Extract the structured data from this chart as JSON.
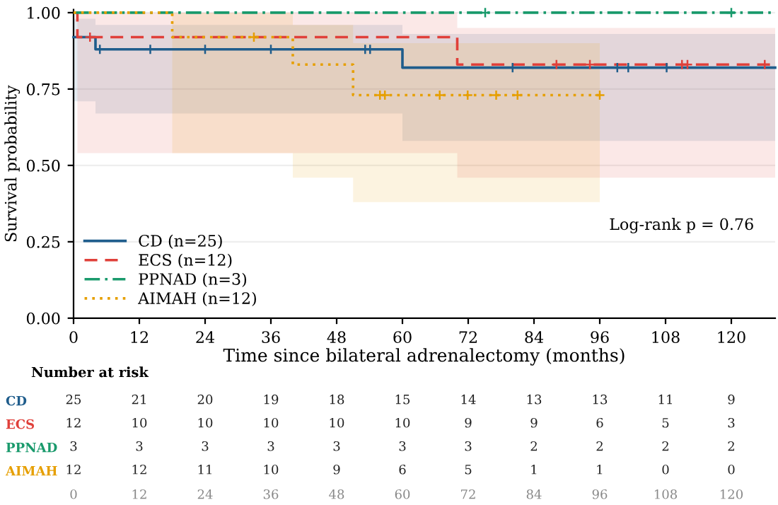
{
  "chart_data": [
    {
      "type": "step",
      "xlabel": "Time since bilateral adrenalectomy (months)",
      "ylabel": "Survival probability",
      "annotations": [
        "Log-rank p = 0.76"
      ],
      "xlim": [
        0,
        128
      ],
      "xticks": [
        0,
        12,
        24,
        36,
        48,
        60,
        72,
        84,
        96,
        108,
        120
      ],
      "ylim": [
        0,
        1.01
      ],
      "yticks": [
        {
          "value": 0,
          "label": "0.00"
        },
        {
          "value": 0.25,
          "label": "0.25"
        },
        {
          "value": 0.5,
          "label": "0.50"
        },
        {
          "value": 0.75,
          "label": "0.75"
        },
        {
          "value": 1,
          "label": "1.00"
        }
      ],
      "grid": "y",
      "legend": "bottom left",
      "series": [
        {
          "name": "CD (n=25)",
          "color": "#1f5d8c",
          "line_style": "solid",
          "x": [
            0,
            4,
            60,
            128
          ],
          "values": [
            0.92,
            0.88,
            0.82,
            0.82
          ],
          "lower": [
            0.71,
            0.67,
            0.58,
            0.58
          ],
          "upper": [
            0.98,
            0.96,
            0.93,
            0.93
          ]
        },
        {
          "name": "ECS (n=12)",
          "color": "#e0403a",
          "line_style": "dashed",
          "x": [
            0,
            0.7,
            70,
            128
          ],
          "values": [
            1,
            0.92,
            0.83,
            0.83
          ],
          "lower": [
            1,
            0.54,
            0.46,
            0.46
          ],
          "upper": [
            1,
            1,
            0.95,
            0.95
          ]
        },
        {
          "name": "PPNAD (n=3)",
          "color": "#1a9a6c",
          "line_style": "dashdot",
          "x": [
            0,
            128
          ],
          "values": [
            1,
            1
          ]
        },
        {
          "name": "AIMAH (n=12)",
          "color": "#e69f00",
          "line_style": "dotted",
          "x": [
            0,
            18,
            40,
            51,
            96
          ],
          "values": [
            1,
            0.92,
            0.83,
            0.73,
            0.73
          ],
          "lower": [
            1,
            0.54,
            0.46,
            0.38,
            0.38
          ],
          "upper": [
            1,
            1,
            0.96,
            0.9,
            0.9
          ]
        },
        {
          "type": "scatter",
          "marker": "cross",
          "color": "#1f5d8c",
          "x": [
            4.8,
            14,
            24,
            36,
            53.2,
            54.1,
            80.1,
            99.2,
            101.2,
            108.2
          ],
          "values": [
            0.88,
            0.88,
            0.88,
            0.88,
            0.88,
            0.88,
            0.82,
            0.82,
            0.82,
            0.82
          ]
        },
        {
          "type": "scatter",
          "marker": "cross",
          "color": "#e0403a",
          "x": [
            3,
            88.1,
            94.2,
            111,
            112,
            126.1
          ],
          "values": [
            0.92,
            0.83,
            0.83,
            0.83,
            0.83,
            0.83
          ]
        },
        {
          "type": "scatter",
          "marker": "cross",
          "color": "#1a9a6c",
          "x": [
            75.1,
            120
          ],
          "values": [
            1,
            1
          ]
        },
        {
          "type": "scatter",
          "marker": "cross",
          "color": "#e69f00",
          "x": [
            32.9,
            55.9,
            56.8,
            66.8,
            71.9,
            77.1,
            81,
            96
          ],
          "values": [
            0.92,
            0.73,
            0.73,
            0.73,
            0.73,
            0.73,
            0.73,
            0.73
          ]
        }
      ]
    },
    {
      "type": "heatmap",
      "title": "Number at risk",
      "categories": [
        "0",
        "12",
        "24",
        "36",
        "48",
        "60",
        "72",
        "84",
        "96",
        "108",
        "120"
      ],
      "y_categories": [
        "CD",
        "ECS",
        "PPNAD",
        "AIMAH"
      ],
      "colors": [
        "#1f5d8c",
        "#e0403a",
        "#1a9a6c",
        "#e69f00"
      ],
      "data_labels": true,
      "cells": [
        [
          25,
          21,
          20,
          19,
          18,
          15,
          14,
          13,
          13,
          11,
          9
        ],
        [
          12,
          10,
          10,
          10,
          10,
          10,
          9,
          9,
          6,
          5,
          3
        ],
        [
          3,
          3,
          3,
          3,
          3,
          3,
          3,
          2,
          2,
          2,
          2
        ],
        [
          12,
          12,
          11,
          10,
          9,
          6,
          5,
          1,
          1,
          0,
          0
        ]
      ]
    }
  ]
}
